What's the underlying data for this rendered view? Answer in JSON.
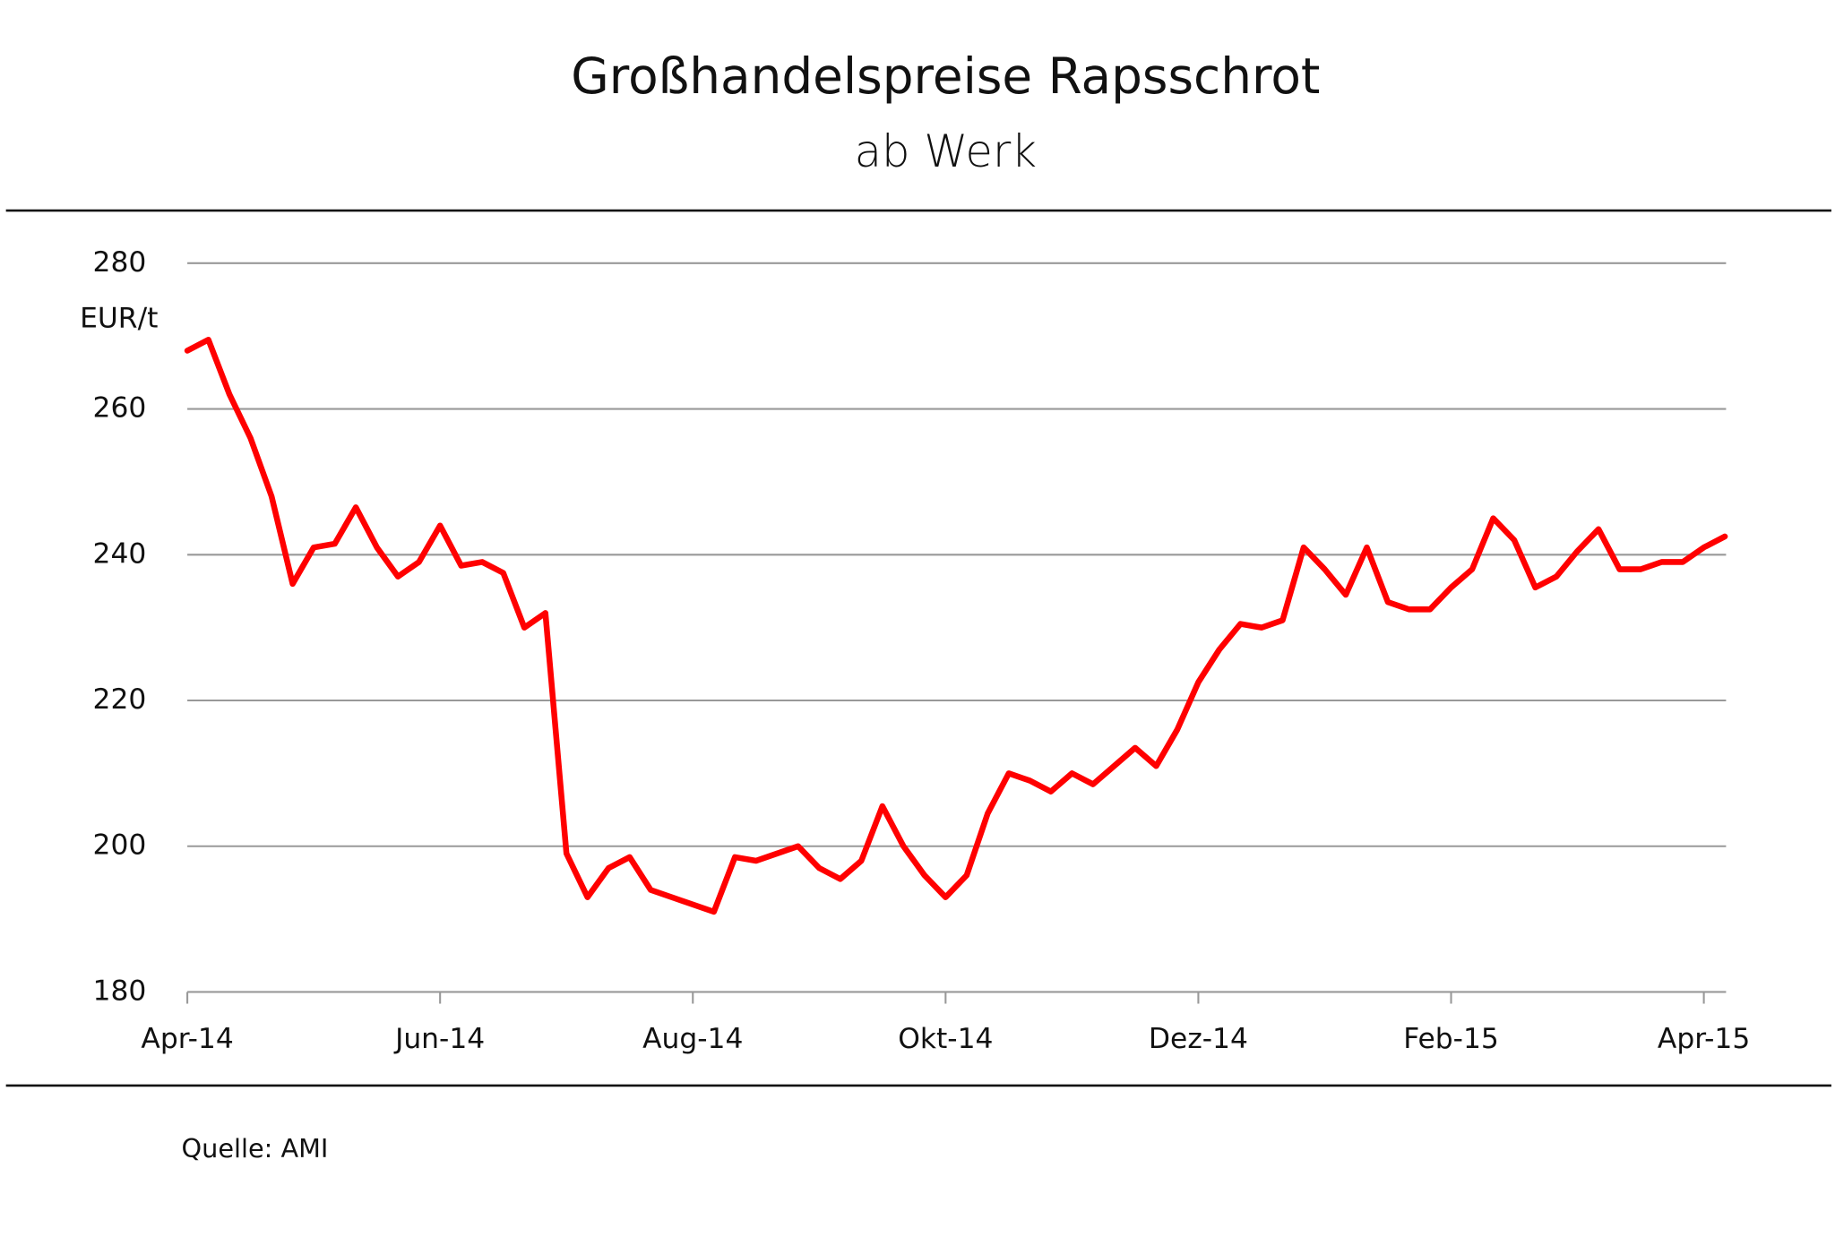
{
  "chart_data": {
    "type": "line",
    "title": "Großhandelspreise Rapsschrot",
    "subtitle": "ab Werk",
    "y_label": "EUR/t",
    "source": "Quelle: AMI",
    "categories": [
      "Apr-14",
      null,
      null,
      null,
      null,
      null,
      null,
      null,
      null,
      null,
      null,
      null,
      "Jun-14",
      null,
      null,
      null,
      null,
      null,
      null,
      null,
      null,
      null,
      null,
      null,
      "Aug-14",
      null,
      null,
      null,
      null,
      null,
      null,
      null,
      null,
      null,
      null,
      null,
      "Okt-14",
      null,
      null,
      null,
      null,
      null,
      null,
      null,
      null,
      null,
      null,
      null,
      "Dez-14",
      null,
      null,
      null,
      null,
      null,
      null,
      null,
      null,
      null,
      null,
      null,
      "Feb-15",
      null,
      null,
      null,
      null,
      null,
      null,
      null,
      null,
      null,
      null,
      null,
      "Apr-15",
      null
    ],
    "values": [
      268,
      269.5,
      262,
      256,
      248,
      236,
      241,
      241.5,
      246.5,
      241,
      237,
      239,
      244,
      238.5,
      239,
      237.5,
      230,
      232,
      199,
      193,
      197,
      198.5,
      194,
      193,
      192,
      191,
      198.5,
      198,
      199,
      200,
      197,
      195.5,
      198,
      205.5,
      200,
      196,
      193,
      196,
      204.5,
      210,
      209,
      207.5,
      210,
      208.5,
      211,
      213.5,
      211,
      216,
      222.5,
      227,
      230.5,
      230,
      231,
      241,
      238,
      234.5,
      241,
      233.5,
      232.5,
      232.5,
      235.5,
      238,
      245,
      242,
      235.5,
      237,
      240.5,
      243.5,
      238,
      238,
      239,
      239,
      241,
      242.5
    ],
    "color": "#ff0000",
    "ylim": [
      180,
      280
    ],
    "yticks": [
      180,
      200,
      220,
      240,
      260,
      280
    ],
    "grid": true
  }
}
